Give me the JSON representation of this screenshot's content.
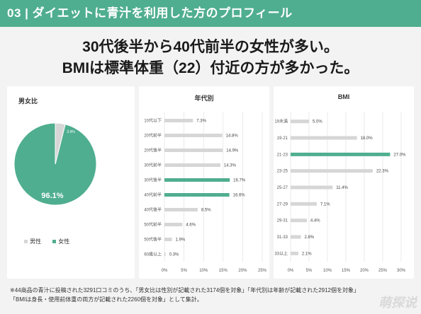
{
  "header": {
    "title": "03 | ダイエットに青汁を利用した方のプロフィール"
  },
  "headline": {
    "line1": "30代後半から40代前半の女性が多い。",
    "line2": "BMIは標準体重（22）付近の方が多かった。"
  },
  "colors": {
    "highlight": "#4fae8f",
    "bar": "#d6d6d6",
    "female": "#4fae8f",
    "male": "#d6d6d6"
  },
  "chart_data": [
    {
      "type": "pie",
      "title": "男女比",
      "slices": [
        {
          "label": "女性",
          "value": 96.1,
          "display": "96.1%"
        },
        {
          "label": "男性",
          "value": 3.9,
          "display": "3.9%"
        }
      ],
      "legend": [
        "男性",
        "女性"
      ]
    },
    {
      "type": "bar",
      "orientation": "horizontal",
      "title": "年代別",
      "categories": [
        "10代以下",
        "20代前半",
        "20代後半",
        "30代前半",
        "30代後半",
        "40代前半",
        "40代後半",
        "50代前半",
        "50代後半",
        "60歳以上"
      ],
      "values": [
        7.3,
        14.8,
        14.9,
        14.3,
        16.7,
        16.6,
        8.5,
        4.6,
        1.9,
        0.3
      ],
      "labels": [
        "7.3%",
        "14.8%",
        "14.9%",
        "14.3%",
        "16.7%",
        "16.6%",
        "8.5%",
        "4.6%",
        "1.9%",
        "0.3%"
      ],
      "highlighted": [
        "30代後半",
        "40代前半"
      ],
      "xlim": [
        0,
        25
      ],
      "xticks": [
        "0%",
        "5%",
        "10%",
        "15%",
        "20%",
        "25%"
      ],
      "grid": true
    },
    {
      "type": "bar",
      "orientation": "horizontal",
      "title": "BMI",
      "categories": [
        "19未満",
        "19-21",
        "21-23",
        "23-25",
        "25-27",
        "27-29",
        "29-31",
        "31-33",
        "33以上"
      ],
      "values": [
        5.0,
        18.0,
        27.0,
        22.3,
        11.4,
        7.1,
        4.4,
        2.8,
        2.1
      ],
      "labels": [
        "5.0%",
        "18.0%",
        "27.0%",
        "22.3%",
        "11.4%",
        "7.1%",
        "4.4%",
        "2.8%",
        "2.1%"
      ],
      "highlighted": [
        "21-23"
      ],
      "xlim": [
        0,
        30
      ],
      "xticks": [
        "0%",
        "5%",
        "10%",
        "15%",
        "20%",
        "25%",
        "30%"
      ],
      "grid": true
    }
  ],
  "footnote": {
    "line1": "※44商品の青汁に投稿された3291口コミのうち、「男女比は性別が記載された3174個を対象」「年代別は年齢が記載された2912個を対象」",
    "line2": "「BMIは身長・使用前体重の両方が記載された2260個を対象」として集計。"
  },
  "watermark": "萌探说"
}
